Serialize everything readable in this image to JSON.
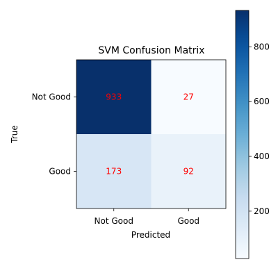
{
  "chart_data": {
    "type": "heatmap",
    "title": "SVM Confusion Matrix",
    "xlabel": "Predicted",
    "ylabel": "True",
    "x_categories": [
      "Not Good",
      "Good"
    ],
    "y_categories": [
      "Not Good",
      "Good"
    ],
    "values": [
      [
        933,
        27
      ],
      [
        173,
        92
      ]
    ],
    "colormap": "Blues",
    "value_label_color": "#ff0000",
    "colorbar": {
      "range": [
        27,
        933
      ],
      "ticks": [
        200,
        400,
        600,
        800
      ]
    }
  }
}
